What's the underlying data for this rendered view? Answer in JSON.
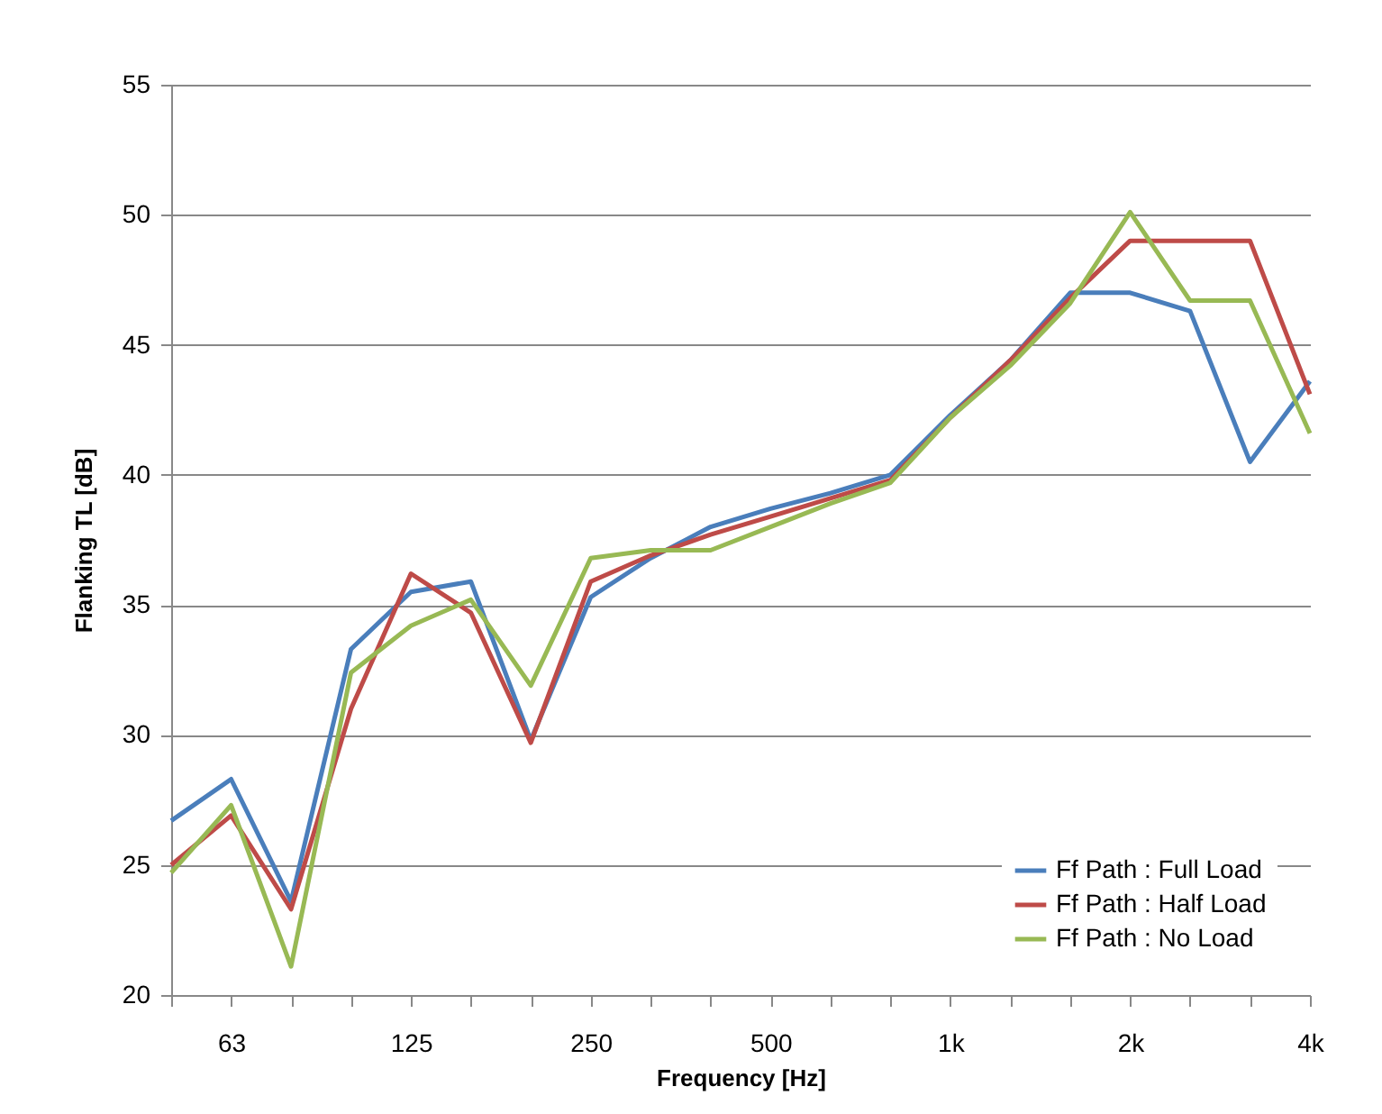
{
  "chart_data": {
    "type": "line",
    "xlabel": "Frequency [Hz]",
    "ylabel": "Flanking TL [dB]",
    "categories": [
      null,
      "63",
      null,
      null,
      "125",
      null,
      null,
      "250",
      null,
      null,
      "500",
      null,
      null,
      "1k",
      null,
      null,
      "2k",
      null,
      null,
      "4k"
    ],
    "series": [
      {
        "name": "Ff Path : Full Load",
        "color": "#4a7ebb",
        "values": [
          26.7,
          28.3,
          23.6,
          33.3,
          35.5,
          35.9,
          29.8,
          35.3,
          36.8,
          38.0,
          38.7,
          39.3,
          40.0,
          42.3,
          44.4,
          47.0,
          47.0,
          46.3,
          40.5,
          43.6
        ]
      },
      {
        "name": "Ff Path : Half Load",
        "color": "#be4b48",
        "values": [
          25.0,
          26.9,
          23.3,
          31.0,
          36.2,
          34.7,
          29.7,
          35.9,
          36.9,
          37.7,
          38.4,
          39.1,
          39.8,
          42.2,
          44.4,
          46.8,
          49.0,
          49.0,
          49.0,
          43.1
        ]
      },
      {
        "name": "Ff Path : No Load",
        "color": "#98b954",
        "values": [
          24.7,
          27.3,
          21.1,
          32.4,
          34.2,
          35.2,
          31.9,
          36.8,
          37.1,
          37.1,
          38.0,
          38.9,
          39.7,
          42.2,
          44.2,
          46.6,
          50.1,
          46.7,
          46.7,
          41.6
        ]
      }
    ],
    "ylim": [
      20,
      55
    ],
    "yticks": [
      20,
      25,
      30,
      35,
      40,
      45,
      50,
      55
    ],
    "grid": "y",
    "legend": "bottom right",
    "marker": "none",
    "line_style": "solid"
  }
}
